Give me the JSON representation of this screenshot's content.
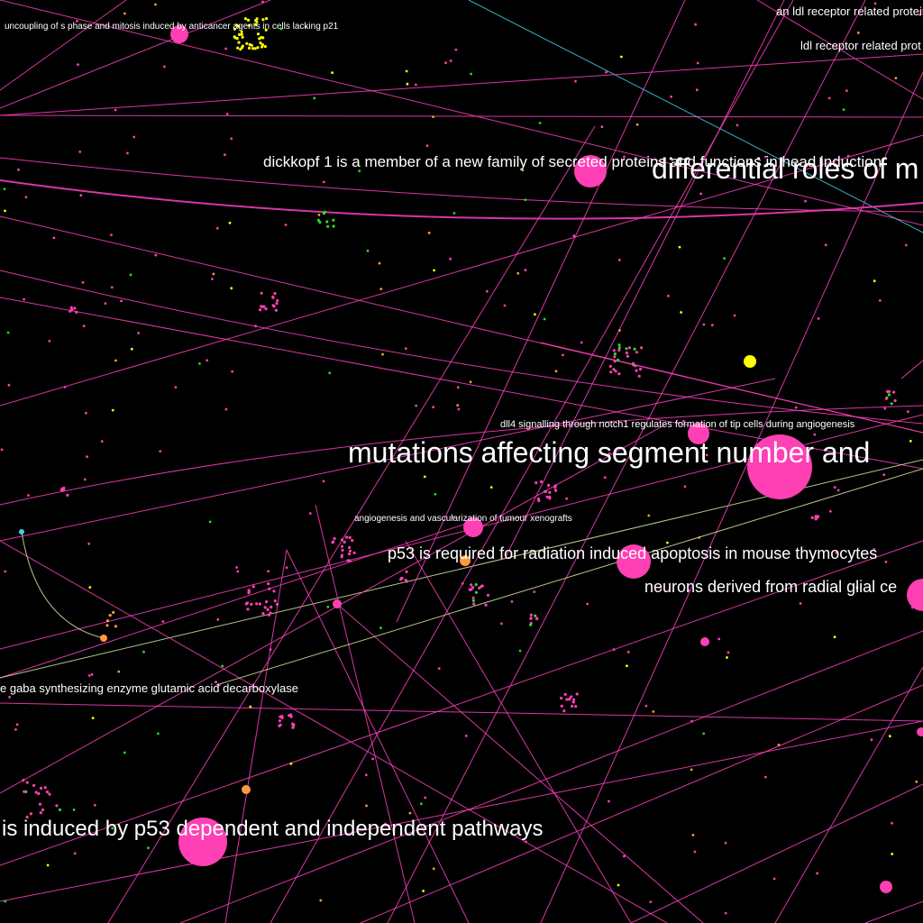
{
  "colors": {
    "background": "#000000",
    "gene_node": "#ff3fb4",
    "paper_node": "#ffff00",
    "drug_node": "#ff9a3c",
    "protein_node": "#22dd22",
    "cyan_edge": "#40d0e0",
    "edge": "#ff40c0",
    "pale_edge": "#d8e8a0"
  },
  "labels": [
    {
      "id": "label-uncoupling",
      "text": "uncoupling of s phase and mitosis induced by anticancer agents in cells lacking p21"
    },
    {
      "id": "label-ldl-receptor-related-protein",
      "text": "an ldl receptor related protein"
    },
    {
      "id": "label-ldl-receptor-related",
      "text": "ldl receptor related prot"
    },
    {
      "id": "label-dickkopf",
      "text": "dickkopf 1 is a member of a new family of secreted proteins and functions in head induction"
    },
    {
      "id": "label-differential-roles",
      "text": "differential roles of m"
    },
    {
      "id": "label-dll4",
      "text": "dll4 signalling through notch1 regulates formation of tip cells during angiogenesis"
    },
    {
      "id": "label-mutations",
      "text": "mutations affecting segment number and"
    },
    {
      "id": "label-angiogenesis",
      "text": "angiogenesis and vascularization of tumour xenografts"
    },
    {
      "id": "label-p53-radiation",
      "text": "p53 is required for radiation induced apoptosis in mouse thymocytes"
    },
    {
      "id": "label-neurons",
      "text": "neurons derived from radial glial ce"
    },
    {
      "id": "label-gaba",
      "text": "e gaba synthesizing enzyme glutamic acid decarboxylase"
    },
    {
      "id": "label-p53-pathways",
      "text": "is induced by p53 dependent and independent pathways"
    }
  ]
}
